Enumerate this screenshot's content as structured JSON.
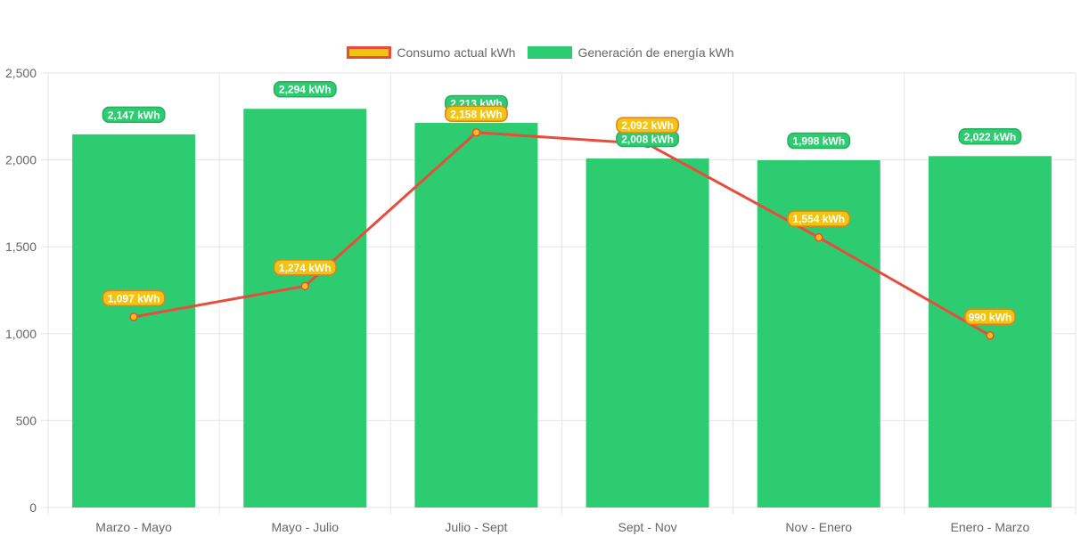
{
  "chart_data": {
    "type": "bar",
    "categories": [
      "Marzo - Mayo",
      "Mayo - Julio",
      "Julio - Sept",
      "Sept - Nov",
      "Nov - Enero",
      "Enero - Marzo"
    ],
    "series": [
      {
        "name": "Generación de energía kWh",
        "type": "bar",
        "color": "#2ecc71",
        "values": [
          2147,
          2294,
          2213,
          2008,
          1998,
          2022
        ],
        "labels": [
          "2,147 kWh",
          "2,294 kWh",
          "2,213 kWh",
          "2,008 kWh",
          "1,998 kWh",
          "2,022 kWh"
        ]
      },
      {
        "name": "Consumo actual kWh",
        "type": "line",
        "color": "#e74c3c",
        "fill_color": "#f1c40f",
        "values": [
          1097,
          1274,
          2158,
          2092,
          1554,
          990
        ],
        "labels": [
          "1,097 kWh",
          "1,274 kWh",
          "2,158 kWh",
          "2,092 kWh",
          "1,554 kWh",
          "990 kWh"
        ]
      }
    ],
    "ylim": [
      0,
      2500
    ],
    "yticks": [
      0,
      500,
      1000,
      1500,
      2000,
      2500
    ],
    "ytick_labels": [
      "0",
      "500",
      "1,000",
      "1,500",
      "2,000",
      "2,500"
    ],
    "grid": true,
    "legend_position": "top-center"
  }
}
